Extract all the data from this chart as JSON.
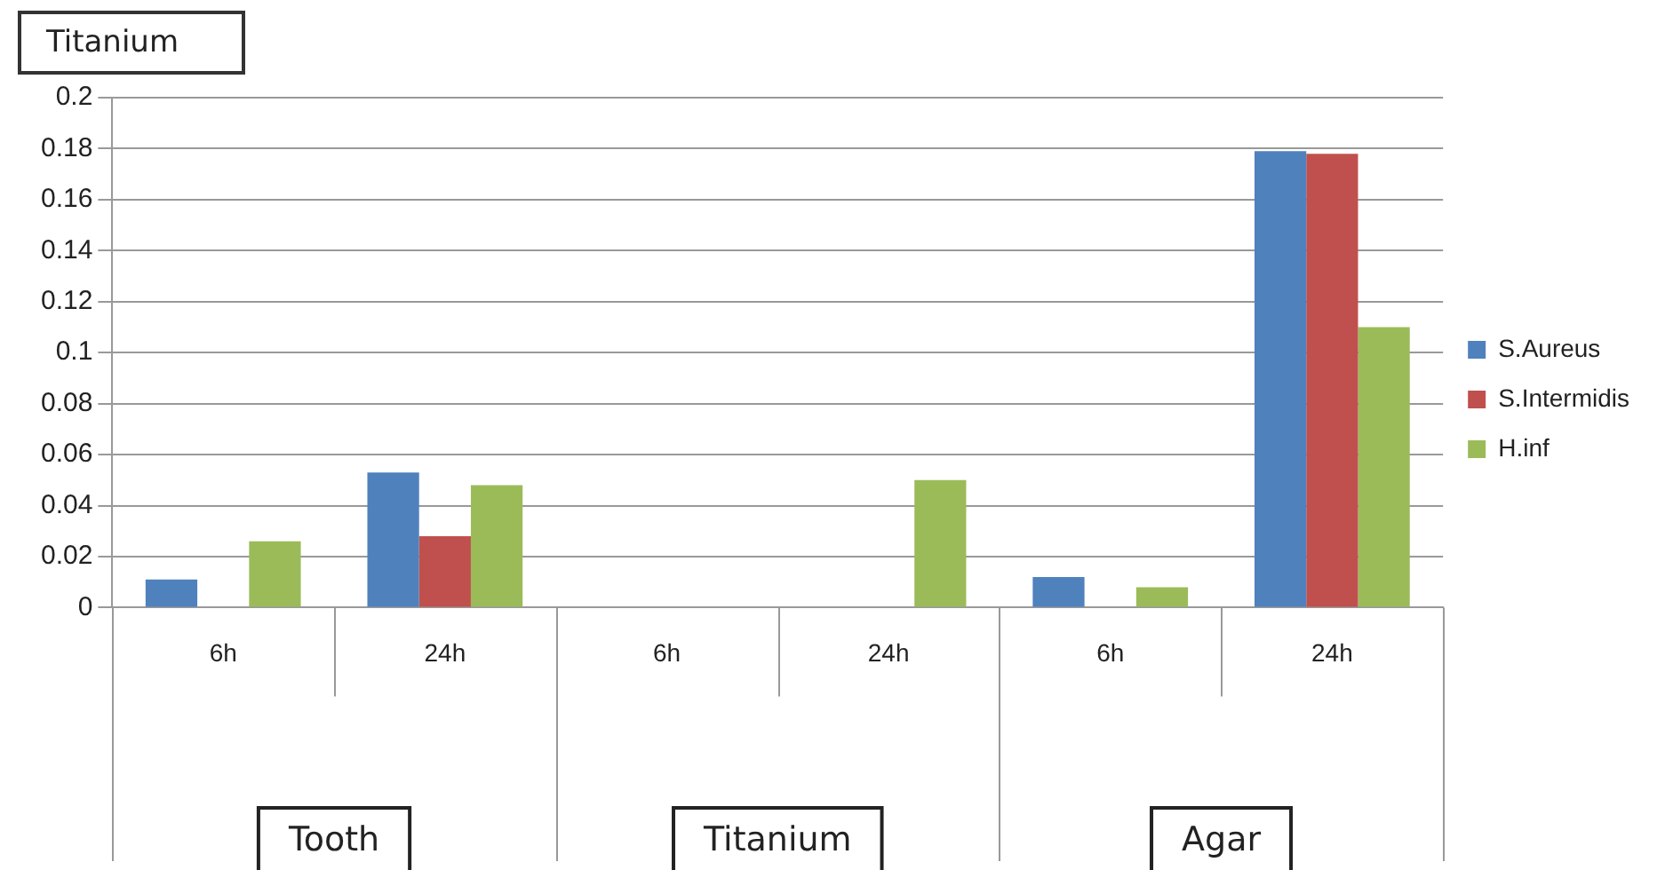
{
  "chart_data": {
    "type": "bar",
    "title": "Titanium",
    "categories": [
      "6h",
      "24h",
      "6h",
      "24h",
      "6h",
      "24h"
    ],
    "series": [
      {
        "name": "S.Aureus",
        "color": "#4f81bd",
        "values": [
          0.011,
          0.053,
          0,
          0,
          0.012,
          0.179
        ]
      },
      {
        "name": "S.Intermidis",
        "color": "#c0504d",
        "values": [
          0,
          0.028,
          0,
          0,
          0,
          0.178
        ]
      },
      {
        "name": "H.inf",
        "color": "#9bbb59",
        "values": [
          0.026,
          0.048,
          0,
          0.05,
          0.008,
          0.11
        ]
      }
    ],
    "annotations": [
      "Tooth",
      "Titanium",
      "Agar"
    ],
    "ylim": [
      0,
      0.2
    ],
    "yticks": [
      0,
      0.02,
      0.04,
      0.06,
      0.08,
      0.1,
      0.12,
      0.14,
      0.16,
      0.18,
      0.2
    ],
    "grid": "y",
    "legend": "right"
  }
}
